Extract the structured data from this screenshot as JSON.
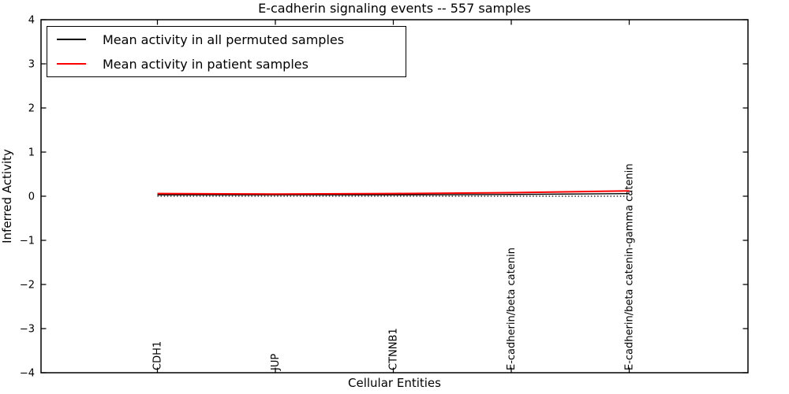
{
  "figure": {
    "title": "E-cadherin signaling events -- 557 samples",
    "xlabel": "Cellular Entities",
    "ylabel": "Inferred Activity"
  },
  "legend": {
    "entries": [
      {
        "label": "Mean activity in all permuted samples",
        "color": "#000000"
      },
      {
        "label": "Mean activity in patient samples",
        "color": "#ff0000"
      }
    ]
  },
  "chart_data": {
    "type": "line",
    "title": "E-cadherin signaling events -- 557 samples",
    "xlabel": "Cellular Entities",
    "ylabel": "Inferred Activity",
    "ylim": [
      -4,
      4
    ],
    "yticks": [
      4,
      3,
      2,
      1,
      0,
      -1,
      -2,
      -3,
      -4
    ],
    "categories": [
      "CDH1",
      "JUP",
      "CTNNB1",
      "E-cadherin/beta catenin",
      "E-cadherin/beta catenin-gamma catenin"
    ],
    "series": [
      {
        "name": "Mean activity in all permuted samples",
        "color": "#000000",
        "linestyle": "solid",
        "values": [
          0.03,
          0.03,
          0.03,
          0.04,
          0.06
        ]
      },
      {
        "name": "Mean activity in patient samples",
        "color": "#ff0000",
        "linestyle": "solid",
        "values": [
          0.06,
          0.05,
          0.06,
          0.08,
          0.12
        ]
      }
    ],
    "reference_line": {
      "y": 0.0,
      "color": "#000000",
      "linestyle": "dotted"
    },
    "legend_position": "upper left",
    "grid": false,
    "tick_direction": "in"
  }
}
